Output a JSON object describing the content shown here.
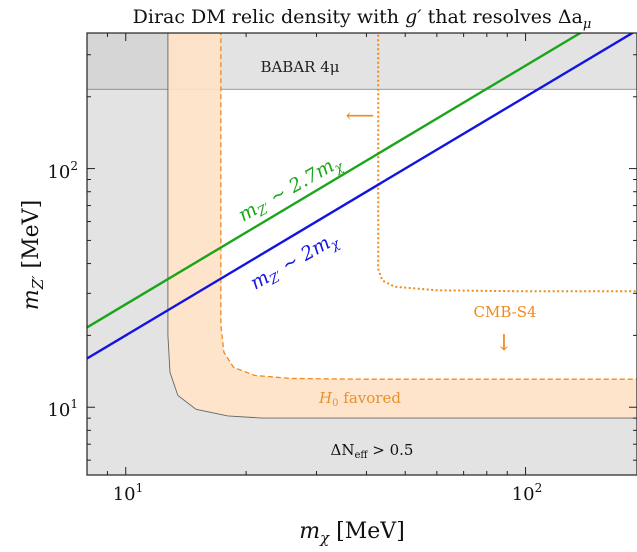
{
  "chart_data": {
    "type": "line",
    "title": "Dirac DM relic density with g′ that resolves Δa_μ",
    "title_parts": {
      "main": "Dirac DM relic density with ",
      "gp": "g′",
      "mid": " that resolves Δa",
      "sub": "μ"
    },
    "xlabel": "m_χ [MeV]",
    "xlabel_parts": {
      "m": "m",
      "sub": "χ",
      "unit": " [MeV]"
    },
    "ylabel": "m_Z′ [MeV]",
    "ylabel_parts": {
      "m": "m",
      "sub": "Z′",
      "unit": " [MeV]"
    },
    "xscale": "log",
    "yscale": "log",
    "xlim": [
      8,
      190
    ],
    "ylim": [
      5.2,
      370
    ],
    "x_ticks": [
      {
        "value": 10,
        "base": "10",
        "exp": "1"
      },
      {
        "value": 100,
        "base": "10",
        "exp": "2"
      }
    ],
    "y_ticks": [
      {
        "value": 10,
        "base": "10",
        "exp": "1"
      },
      {
        "value": 100,
        "base": "10",
        "exp": "2"
      }
    ],
    "series": [
      {
        "name": "m_Z′ ~ 2.7m_χ",
        "color": "#1aa51a",
        "x": [
          8,
          190
        ],
        "y": [
          21.6,
          513
        ]
      },
      {
        "name": "m_Z′ ~ 2m_χ",
        "color": "#1414e0",
        "x": [
          8,
          190
        ],
        "y": [
          16,
          380
        ]
      }
    ],
    "series_labels": [
      {
        "text_m": "m",
        "text_sub": "Z′",
        "text_rest": " ∼ 2.7m",
        "text_sub2": "χ",
        "color": "#1aa51a"
      },
      {
        "text_m": "m",
        "text_sub": "Z′",
        "text_rest": " ∼ 2m",
        "text_sub2": "χ",
        "color": "#1414e0"
      }
    ],
    "regions": {
      "babar": {
        "label": "BABAR 4μ",
        "y_min": 215,
        "color": "#cccccc"
      },
      "delta_neff": {
        "label_pre": "ΔN",
        "label_sub": "eff",
        "label_post": " > 0.5",
        "color": "#e3e3e3"
      },
      "h0_favored": {
        "label_pre": "H",
        "label_sub": "0",
        "label_post": " favored",
        "color": "#fde2c6",
        "text_color": "#e8912d"
      },
      "cmb_s4": {
        "label": "CMB-S4",
        "color": "#f08a1c"
      }
    },
    "arrows": {
      "left": "⟵",
      "down": "↓"
    },
    "grid": false,
    "legend": "none"
  }
}
